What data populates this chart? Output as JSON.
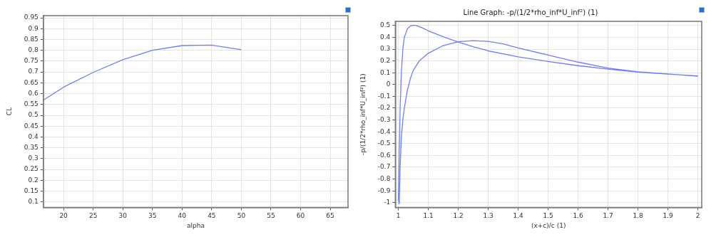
{
  "chart_data": [
    {
      "type": "line",
      "xlabel": "alpha",
      "ylabel": "CL",
      "xlim": [
        16.6,
        68
      ],
      "xticks": [
        20,
        25,
        30,
        35,
        40,
        45,
        50,
        55,
        60,
        65
      ],
      "ylim": [
        0.075,
        0.96
      ],
      "yticks": [
        0.1,
        0.15,
        0.2,
        0.25,
        0.3,
        0.35,
        0.4,
        0.45,
        0.5,
        0.55,
        0.6,
        0.65,
        0.7,
        0.75,
        0.8,
        0.85,
        0.9,
        0.95
      ],
      "grid": true,
      "marker": "none",
      "series": [
        {
          "color": "#6f7ff5",
          "x": [
            16.6,
            20,
            25,
            30,
            35,
            40,
            45,
            50
          ],
          "values": [
            0.57,
            0.63,
            0.698,
            0.757,
            0.8,
            0.822,
            0.824,
            0.803
          ]
        }
      ]
    },
    {
      "type": "line",
      "title": "Line Graph: -p/(1/2*rho_inf*U_inf²) (1)",
      "xlabel": "(x+c)/c (1)",
      "ylabel": "-p/(1/2*rho_inf*U_inf²) (1)",
      "xlim": [
        0.99,
        2.013
      ],
      "xticks": [
        1,
        1.1,
        1.2,
        1.3,
        1.4,
        1.5,
        1.6,
        1.7,
        1.8,
        1.9,
        2
      ],
      "ylim": [
        -1.04,
        0.535
      ],
      "yticks": [
        -1,
        -0.9,
        -0.8,
        -0.7,
        -0.6,
        -0.5,
        -0.4,
        -0.3,
        -0.2,
        -0.1,
        0,
        0.1,
        0.2,
        0.3,
        0.4,
        0.5
      ],
      "grid": true,
      "marker": "none",
      "series": [
        {
          "color": "#6f7ff5",
          "x": [
            2,
            1.9,
            1.8,
            1.7,
            1.6,
            1.5,
            1.4,
            1.35,
            1.3,
            1.25,
            1.2,
            1.15,
            1.1,
            1.07,
            1.05,
            1.04,
            1.03,
            1.02,
            1.015,
            1.01,
            1.006,
            1.003,
            1,
            1.003,
            1.006,
            1.01,
            1.015,
            1.02,
            1.03,
            1.04,
            1.05,
            1.06,
            1.08,
            1.1,
            1.15,
            1.2,
            1.25,
            1.3,
            1.4,
            1.5,
            1.6,
            1.7,
            1.8,
            1.9,
            2
          ],
          "values": [
            0.07,
            0.09,
            0.108,
            0.14,
            0.19,
            0.25,
            0.31,
            0.345,
            0.365,
            0.372,
            0.362,
            0.33,
            0.265,
            0.2,
            0.12,
            0.05,
            -0.05,
            -0.2,
            -0.3,
            -0.45,
            -0.7,
            -1.01,
            -0.97,
            -0.6,
            -0.2,
            0.1,
            0.3,
            0.4,
            0.47,
            0.495,
            0.503,
            0.5,
            0.48,
            0.455,
            0.405,
            0.36,
            0.32,
            0.285,
            0.235,
            0.195,
            0.16,
            0.13,
            0.105,
            0.088,
            0.073
          ]
        }
      ]
    }
  ]
}
